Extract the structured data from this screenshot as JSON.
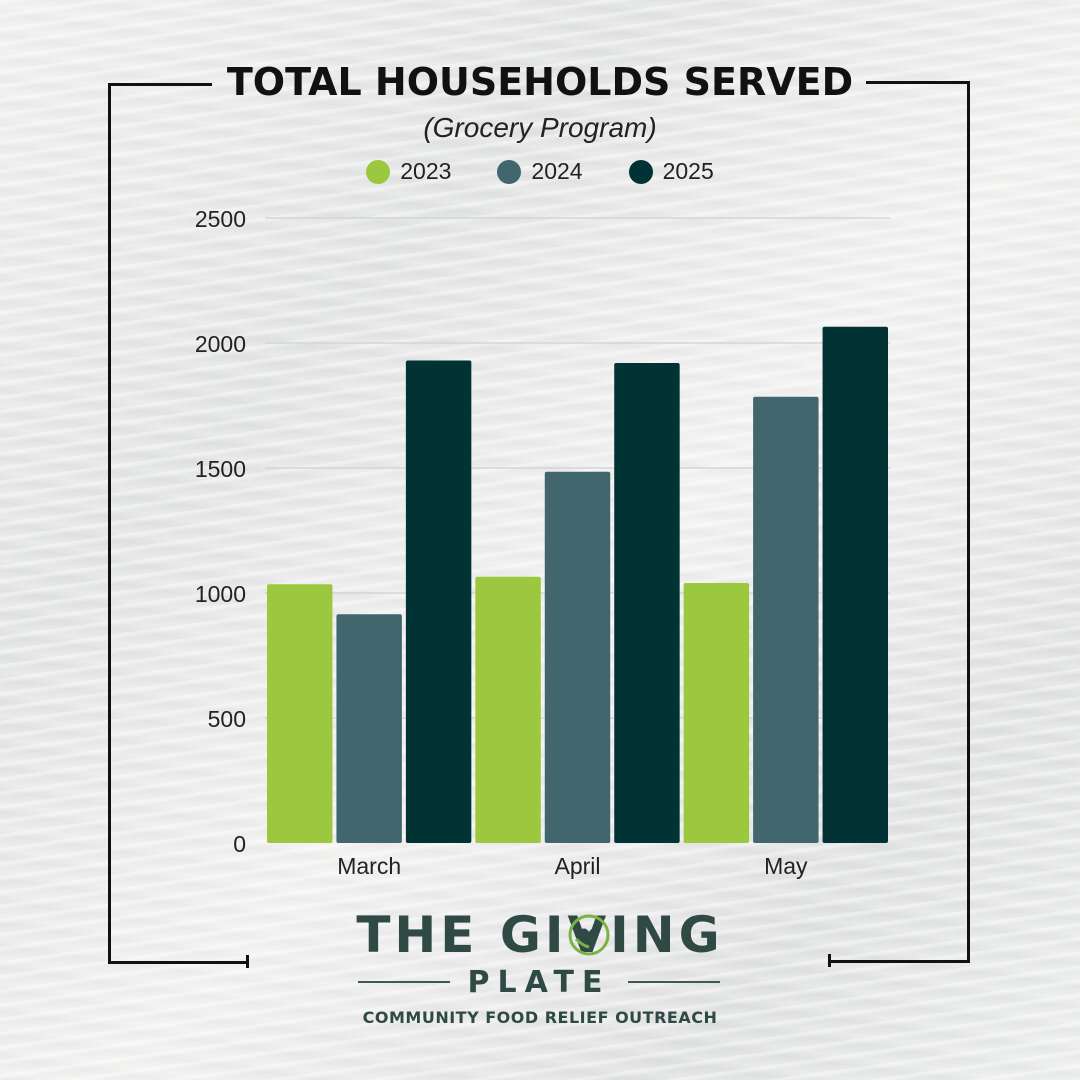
{
  "chart_data": {
    "type": "bar",
    "title": "TOTAL HOUSEHOLDS SERVED",
    "subtitle": "(Grocery Program)",
    "categories": [
      "March",
      "April",
      "May"
    ],
    "series": [
      {
        "name": "2023",
        "color": "#9bc83f",
        "values": [
          1035,
          1065,
          1040
        ]
      },
      {
        "name": "2024",
        "color": "#41666e",
        "values": [
          915,
          1485,
          1785
        ]
      },
      {
        "name": "2025",
        "color": "#013335",
        "values": [
          1930,
          1920,
          2065
        ]
      }
    ],
    "ylim": [
      0,
      2500
    ],
    "yticks": [
      0,
      500,
      1000,
      1500,
      2000,
      2500
    ],
    "grid": true,
    "legend": "top-center"
  },
  "logo": {
    "name": "THE GIVING",
    "sub": "PLATE",
    "tagline": "COMMUNITY FOOD RELIEF OUTREACH",
    "color": "#2f4a45",
    "mark_icon": "heart-hands-icon"
  }
}
